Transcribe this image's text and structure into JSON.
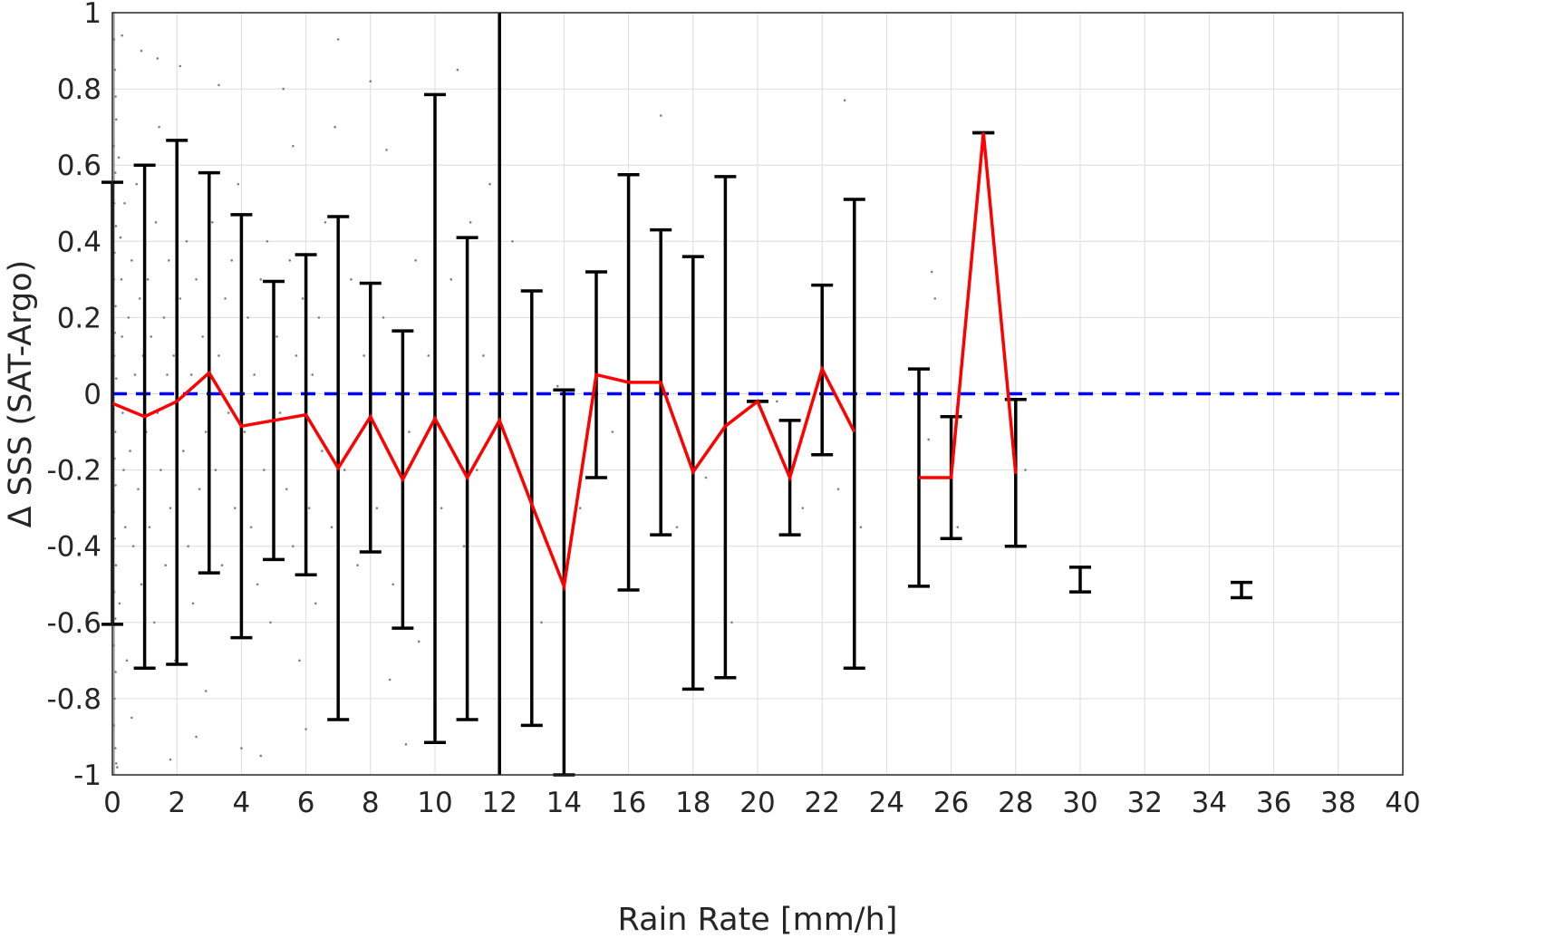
{
  "chart_data": {
    "type": "scatter",
    "title": "",
    "xlabel": "Rain Rate [mm/h]",
    "ylabel": "Δ SSS (SAT-Argo)",
    "xlim": [
      0,
      40
    ],
    "ylim": [
      -1,
      1
    ],
    "grid": true,
    "legend": "none",
    "x_ticks": [
      "0",
      "2",
      "4",
      "6",
      "8",
      "10",
      "12",
      "14",
      "16",
      "18",
      "20",
      "22",
      "24",
      "26",
      "28",
      "30",
      "32",
      "34",
      "36",
      "38",
      "40"
    ],
    "y_ticks": [
      "1",
      "0.8",
      "0.6",
      "0.4",
      "0.2",
      "0",
      "-0.2",
      "-0.4",
      "-0.6",
      "-0.8",
      "-1"
    ],
    "colors": {
      "mean_line": "#ff0000",
      "zero_line": "#0000ff",
      "error_bars": "#000000",
      "points": "#808080",
      "threshold_line": "#000000"
    },
    "threshold_x": 12,
    "zero_reference_y": 0,
    "mean_series": [
      {
        "x": [
          0,
          1,
          2,
          3,
          4,
          5,
          6,
          7,
          8,
          9,
          10,
          11,
          12,
          13,
          14,
          15,
          16,
          17,
          18,
          19,
          20,
          21,
          22,
          23
        ],
        "y": [
          -0.025,
          -0.06,
          -0.02,
          0.055,
          -0.085,
          -0.07,
          -0.055,
          -0.195,
          -0.06,
          -0.225,
          -0.065,
          -0.22,
          -0.07,
          -0.29,
          -0.505,
          0.05,
          0.03,
          0.03,
          -0.205,
          -0.085,
          -0.02,
          -0.22,
          0.065,
          -0.1
        ]
      },
      {
        "x": [
          25,
          26,
          27,
          28
        ],
        "y": [
          -0.22,
          -0.22,
          0.685,
          -0.21
        ]
      }
    ],
    "error_bars": [
      {
        "x": 0,
        "low": -0.605,
        "high": 0.555
      },
      {
        "x": 1,
        "low": -0.72,
        "high": 0.6
      },
      {
        "x": 2,
        "low": -0.71,
        "high": 0.665
      },
      {
        "x": 3,
        "low": -0.47,
        "high": 0.58
      },
      {
        "x": 4,
        "low": -0.64,
        "high": 0.47
      },
      {
        "x": 5,
        "low": -0.435,
        "high": 0.295
      },
      {
        "x": 6,
        "low": -0.475,
        "high": 0.365
      },
      {
        "x": 7,
        "low": -0.855,
        "high": 0.465
      },
      {
        "x": 8,
        "low": -0.415,
        "high": 0.29
      },
      {
        "x": 9,
        "low": -0.615,
        "high": 0.165
      },
      {
        "x": 10,
        "low": -0.915,
        "high": 0.785
      },
      {
        "x": 11,
        "low": -0.855,
        "high": 0.41
      },
      {
        "x": 13,
        "low": -0.87,
        "high": 0.27
      },
      {
        "x": 14,
        "low": -1.0,
        "high": 0.01
      },
      {
        "x": 15,
        "low": -0.22,
        "high": 0.32
      },
      {
        "x": 16,
        "low": -0.515,
        "high": 0.575
      },
      {
        "x": 17,
        "low": -0.37,
        "high": 0.43
      },
      {
        "x": 18,
        "low": -0.775,
        "high": 0.36
      },
      {
        "x": 19,
        "low": -0.745,
        "high": 0.57
      },
      {
        "x": 20,
        "low": -0.02,
        "high": -0.02
      },
      {
        "x": 21,
        "low": -0.37,
        "high": -0.07
      },
      {
        "x": 22,
        "low": -0.16,
        "high": 0.285
      },
      {
        "x": 23,
        "low": -0.72,
        "high": 0.51
      },
      {
        "x": 25,
        "low": -0.505,
        "high": 0.065
      },
      {
        "x": 26,
        "low": -0.38,
        "high": -0.06
      },
      {
        "x": 28,
        "low": -0.4,
        "high": -0.015
      },
      {
        "x": 27,
        "low": 0.685,
        "high": 0.685
      },
      {
        "x": 30,
        "low": -0.52,
        "high": -0.455
      },
      {
        "x": 35,
        "low": -0.535,
        "high": -0.495
      }
    ],
    "scatter_points": [
      [
        0.05,
        0.93
      ],
      [
        0.08,
        0.85
      ],
      [
        0.1,
        0.78
      ],
      [
        0.12,
        0.72
      ],
      [
        0.04,
        0.65
      ],
      [
        0.09,
        0.58
      ],
      [
        0.06,
        0.5
      ],
      [
        0.11,
        0.44
      ],
      [
        0.07,
        0.37
      ],
      [
        0.05,
        0.3
      ],
      [
        0.1,
        0.23
      ],
      [
        0.08,
        0.16
      ],
      [
        0.06,
        0.1
      ],
      [
        0.12,
        0.04
      ],
      [
        0.04,
        -0.04
      ],
      [
        0.09,
        -0.1
      ],
      [
        0.07,
        -0.17
      ],
      [
        0.1,
        -0.24
      ],
      [
        0.05,
        -0.31
      ],
      [
        0.08,
        -0.38
      ],
      [
        0.11,
        -0.45
      ],
      [
        0.06,
        -0.52
      ],
      [
        0.09,
        -0.59
      ],
      [
        0.04,
        -0.66
      ],
      [
        0.1,
        -0.73
      ],
      [
        0.07,
        -0.8
      ],
      [
        0.05,
        -0.87
      ],
      [
        0.09,
        -0.93
      ],
      [
        0.12,
        -0.97
      ],
      [
        0.2,
        0.62
      ],
      [
        0.25,
        0.41
      ],
      [
        0.3,
        0.15
      ],
      [
        0.35,
        -0.2
      ],
      [
        0.4,
        -0.35
      ],
      [
        0.22,
        -0.55
      ],
      [
        0.28,
        0.3
      ],
      [
        0.32,
        -0.05
      ],
      [
        0.38,
        0.5
      ],
      [
        0.45,
        -0.7
      ],
      [
        0.5,
        0.2
      ],
      [
        0.55,
        -0.15
      ],
      [
        0.6,
        0.35
      ],
      [
        0.65,
        -0.4
      ],
      [
        0.7,
        0.05
      ],
      [
        0.75,
        0.55
      ],
      [
        0.8,
        -0.25
      ],
      [
        0.85,
        0.25
      ],
      [
        0.9,
        -0.5
      ],
      [
        0.95,
        0.1
      ],
      [
        1.05,
        -0.1
      ],
      [
        1.1,
        0.3
      ],
      [
        1.15,
        -0.35
      ],
      [
        1.2,
        0.15
      ],
      [
        1.3,
        -0.6
      ],
      [
        1.35,
        0.45
      ],
      [
        1.4,
        -0.05
      ],
      [
        1.45,
        0.7
      ],
      [
        1.5,
        -0.2
      ],
      [
        1.6,
        0.2
      ],
      [
        1.65,
        -0.45
      ],
      [
        1.7,
        0.05
      ],
      [
        1.75,
        0.35
      ],
      [
        1.8,
        -0.3
      ],
      [
        1.9,
        0.1
      ],
      [
        1.95,
        -0.7
      ],
      [
        2.1,
        0.25
      ],
      [
        2.2,
        -0.15
      ],
      [
        2.3,
        0.4
      ],
      [
        2.35,
        -0.4
      ],
      [
        2.45,
        0.05
      ],
      [
        2.5,
        -0.55
      ],
      [
        2.6,
        0.3
      ],
      [
        2.7,
        -0.25
      ],
      [
        2.8,
        0.15
      ],
      [
        2.9,
        -0.1
      ],
      [
        3.1,
        0.45
      ],
      [
        3.2,
        -0.2
      ],
      [
        3.3,
        0.1
      ],
      [
        3.4,
        -0.45
      ],
      [
        3.5,
        0.25
      ],
      [
        3.6,
        -0.05
      ],
      [
        3.7,
        0.35
      ],
      [
        3.8,
        -0.3
      ],
      [
        3.9,
        0.55
      ],
      [
        4.1,
        -0.1
      ],
      [
        4.2,
        0.2
      ],
      [
        4.3,
        -0.35
      ],
      [
        4.4,
        0.05
      ],
      [
        4.5,
        -0.5
      ],
      [
        4.6,
        0.3
      ],
      [
        4.7,
        -0.2
      ],
      [
        4.8,
        0.4
      ],
      [
        4.9,
        -0.6
      ],
      [
        5.1,
        0.15
      ],
      [
        5.2,
        -0.05
      ],
      [
        5.3,
        0.8
      ],
      [
        5.4,
        -0.25
      ],
      [
        5.5,
        0.35
      ],
      [
        5.6,
        -0.4
      ],
      [
        5.7,
        0.1
      ],
      [
        5.8,
        -0.7
      ],
      [
        5.9,
        0.25
      ],
      [
        6.1,
        -0.3
      ],
      [
        6.2,
        0.05
      ],
      [
        6.3,
        -0.55
      ],
      [
        6.4,
        0.2
      ],
      [
        6.5,
        -0.15
      ],
      [
        6.6,
        0.45
      ],
      [
        6.8,
        -0.35
      ],
      [
        7.0,
        0.93
      ],
      [
        7.2,
        -0.2
      ],
      [
        7.4,
        0.3
      ],
      [
        7.6,
        -0.45
      ],
      [
        7.8,
        0.1
      ],
      [
        8.0,
        0.82
      ],
      [
        8.2,
        -0.3
      ],
      [
        8.4,
        0.2
      ],
      [
        8.5,
        0.64
      ],
      [
        8.7,
        -0.5
      ],
      [
        9.1,
        -0.92
      ],
      [
        9.2,
        -0.1
      ],
      [
        9.4,
        0.35
      ],
      [
        9.5,
        -0.65
      ],
      [
        9.8,
        0.1
      ],
      [
        10.2,
        -0.3
      ],
      [
        10.5,
        0.3
      ],
      [
        10.7,
        0.85
      ],
      [
        10.9,
        -0.4
      ],
      [
        11.1,
        0.45
      ],
      [
        11.3,
        -0.2
      ],
      [
        11.5,
        0.1
      ],
      [
        11.7,
        0.55
      ],
      [
        12.4,
        0.4
      ],
      [
        13.3,
        -0.6
      ],
      [
        13.8,
        0.02
      ],
      [
        14.5,
        -0.3
      ],
      [
        15.5,
        -0.1
      ],
      [
        17.0,
        0.73
      ],
      [
        17.5,
        -0.35
      ],
      [
        18.4,
        -0.22
      ],
      [
        19.2,
        -0.6
      ],
      [
        20.6,
        -0.02
      ],
      [
        21.4,
        -0.3
      ],
      [
        22.5,
        -0.25
      ],
      [
        22.7,
        0.77
      ],
      [
        23.2,
        -0.35
      ],
      [
        25.3,
        -0.12
      ],
      [
        25.5,
        0.25
      ],
      [
        25.4,
        0.32
      ],
      [
        26.2,
        -0.35
      ],
      [
        28.3,
        -0.2
      ],
      [
        30.0,
        -0.5
      ],
      [
        35.0,
        -0.52
      ],
      [
        0.15,
        -0.98
      ],
      [
        0.3,
        0.94
      ],
      [
        0.6,
        -0.85
      ],
      [
        0.9,
        0.9
      ],
      [
        1.4,
        0.88
      ],
      [
        2.1,
        0.86
      ],
      [
        2.6,
        -0.9
      ],
      [
        3.3,
        0.81
      ],
      [
        4.0,
        -0.93
      ],
      [
        4.6,
        -0.95
      ],
      [
        5.6,
        0.65
      ],
      [
        6.0,
        -0.88
      ],
      [
        6.9,
        0.7
      ],
      [
        8.6,
        -0.75
      ],
      [
        1.8,
        -0.96
      ],
      [
        2.9,
        -0.78
      ]
    ]
  }
}
